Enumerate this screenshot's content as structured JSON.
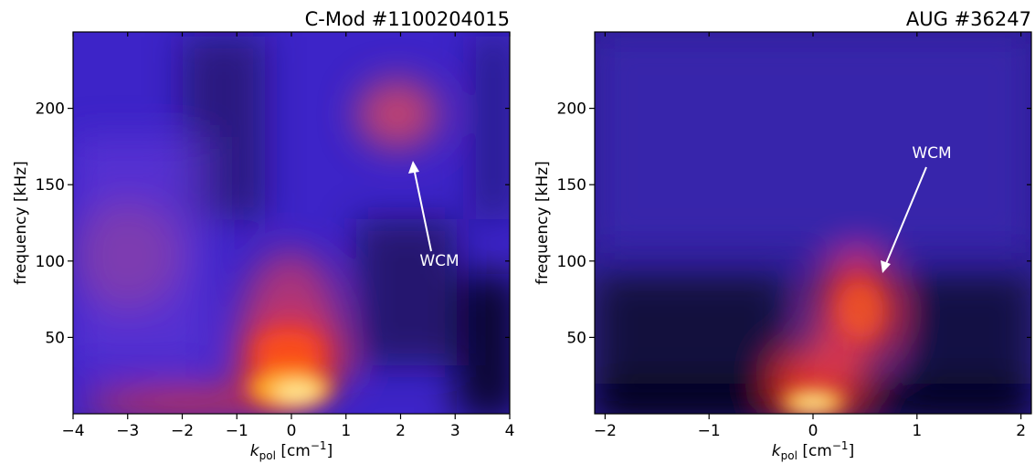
{
  "chart_data": [
    {
      "type": "heatmap",
      "title": "C-Mod #1100204015",
      "xlabel": "k_pol [cm⁻¹]",
      "xlabel_main": "k",
      "xlabel_sub": "pol",
      "xlabel_unit_pre": " [cm",
      "xlabel_unit_exp": "−1",
      "xlabel_unit_post": "]",
      "ylabel": "frequency [kHz]",
      "xlim": [
        -4,
        4
      ],
      "ylim": [
        0,
        250
      ],
      "xticks": [
        -4,
        -3,
        -2,
        -1,
        0,
        1,
        2,
        3,
        4
      ],
      "xtick_labels": [
        "−4",
        "−3",
        "−2",
        "−1",
        "0",
        "1",
        "2",
        "3",
        "4"
      ],
      "yticks": [
        50,
        100,
        150,
        200
      ],
      "ytick_labels": [
        "50",
        "100",
        "150",
        "200"
      ],
      "colormap": "CMRmap",
      "background_color": "#3d24c8",
      "features": [
        {
          "x": 0.1,
          "y": 15,
          "intensity": 1.0
        },
        {
          "x": -1.2,
          "y": 5,
          "intensity": 0.8
        },
        {
          "x": 0.1,
          "y": 45,
          "intensity": 0.75
        },
        {
          "x": 2.1,
          "y": 195,
          "intensity": 0.55
        },
        {
          "x": -2.8,
          "y": 110,
          "intensity": 0.4
        }
      ],
      "annotation": {
        "text": "WCM",
        "point": [
          2.25,
          165
        ],
        "text_at": [
          2.7,
          99
        ]
      }
    },
    {
      "type": "heatmap",
      "title": "AUG #36247",
      "xlabel": "k_pol [cm⁻¹]",
      "xlabel_main": "k",
      "xlabel_sub": "pol",
      "xlabel_unit_pre": " [cm",
      "xlabel_unit_exp": "−1",
      "xlabel_unit_post": "]",
      "ylabel": "frequency [kHz]",
      "xlim": [
        -2.1,
        2.1
      ],
      "ylim": [
        0,
        250
      ],
      "xticks": [
        -2,
        -1,
        0,
        1,
        2
      ],
      "xtick_labels": [
        "−2",
        "−1",
        "0",
        "1",
        "2"
      ],
      "yticks": [
        50,
        100,
        150,
        200
      ],
      "ytick_labels": [
        "50",
        "100",
        "150",
        "200"
      ],
      "colormap": "CMRmap",
      "background_color": "#2e1c96",
      "features": [
        {
          "x": 0.0,
          "y": 8,
          "intensity": 1.0
        },
        {
          "x": 0.45,
          "y": 65,
          "intensity": 0.7
        },
        {
          "x": 0.2,
          "y": 30,
          "intensity": 0.75
        }
      ],
      "annotation": {
        "text": "WCM",
        "point": [
          0.65,
          90
        ],
        "text_at": [
          1.15,
          170
        ]
      }
    }
  ]
}
